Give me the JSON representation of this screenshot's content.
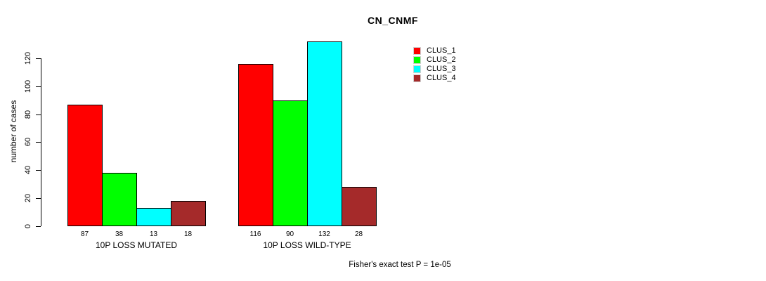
{
  "title": "CN_CNMF",
  "footnote": "Fisher's exact test P = 1e-05",
  "chart_data": {
    "type": "bar",
    "title": "CN_CNMF",
    "xlabel": "",
    "ylabel": "number of cases",
    "ylim": [
      0,
      120
    ],
    "yticks": [
      0,
      20,
      40,
      60,
      80,
      100,
      120
    ],
    "grid": false,
    "legend_position": "top-right",
    "categories": [
      "10P LOSS MUTATED",
      "10P LOSS WILD-TYPE"
    ],
    "series": [
      {
        "name": "CLUS_1",
        "color": "#ff0000",
        "values": [
          87,
          116
        ]
      },
      {
        "name": "CLUS_2",
        "color": "#00ff00",
        "values": [
          38,
          90
        ]
      },
      {
        "name": "CLUS_3",
        "color": "#00ffff",
        "values": [
          13,
          132
        ]
      },
      {
        "name": "CLUS_4",
        "color": "#a52a2a",
        "values": [
          18,
          28
        ]
      }
    ],
    "value_labels": [
      [
        87,
        38,
        13,
        18
      ],
      [
        116,
        90,
        132,
        28
      ]
    ],
    "annotation": "Fisher's exact test P = 1e-05"
  }
}
